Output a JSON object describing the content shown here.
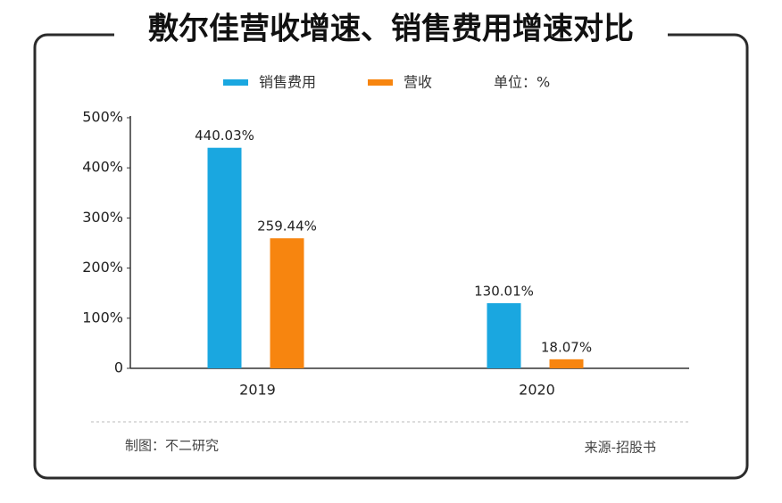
{
  "chart_data": {
    "type": "bar",
    "title": "敷尔佳营收增速、销售费用增速对比",
    "unit_note": "单位：%",
    "categories": [
      "2019",
      "2020"
    ],
    "series": [
      {
        "name": "销售费用",
        "color": "#1aa7e0",
        "values": [
          440.03,
          130.01
        ],
        "value_labels": [
          "440.03%",
          "130.01%"
        ]
      },
      {
        "name": "营收",
        "color": "#f7850f",
        "values": [
          259.44,
          18.07
        ],
        "value_labels": [
          "259.44%",
          "18.07%"
        ]
      }
    ],
    "ylim": [
      0,
      500
    ],
    "yticks": [
      0,
      {
        "value": 100,
        "label": "100%"
      },
      {
        "value": 200,
        "label": "200%"
      },
      {
        "value": 300,
        "label": "300%"
      },
      {
        "value": 400,
        "label": "400%"
      },
      {
        "value": 500,
        "label": "500%"
      }
    ],
    "credit": "制图：不二研究",
    "source": "来源-招股书"
  }
}
